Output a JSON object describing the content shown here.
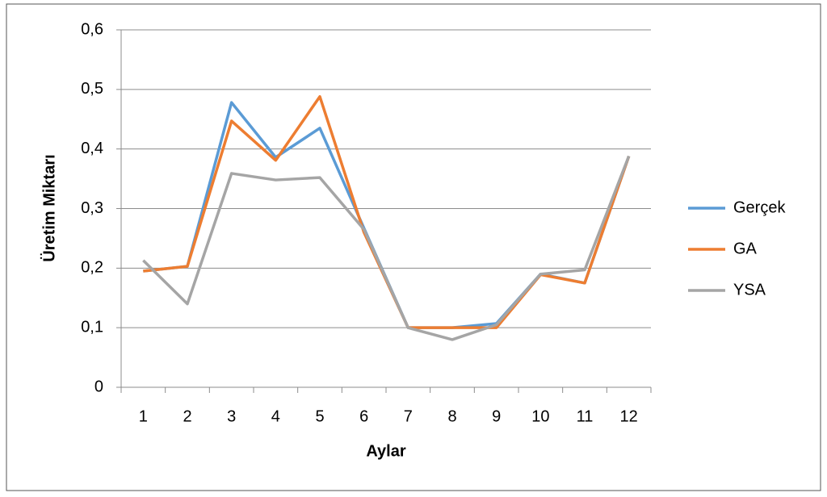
{
  "chart_data": {
    "type": "line",
    "x_label": "Aylar",
    "y_label": "Üretim Miktarı",
    "categories": [
      "1",
      "2",
      "3",
      "4",
      "5",
      "6",
      "7",
      "8",
      "9",
      "10",
      "11",
      "12"
    ],
    "series": [
      {
        "name": "Gerçek",
        "color": "#5b9bd5",
        "values": [
          0.195,
          0.203,
          0.478,
          0.386,
          0.435,
          0.267,
          0.1,
          0.1,
          0.107,
          0.19,
          0.175,
          0.388
        ]
      },
      {
        "name": "GA",
        "color": "#ed7d31",
        "values": [
          0.195,
          0.203,
          0.447,
          0.381,
          0.488,
          0.26,
          0.1,
          0.1,
          0.1,
          0.189,
          0.175,
          0.388
        ]
      },
      {
        "name": "YSA",
        "color": "#a5a5a5",
        "values": [
          0.213,
          0.14,
          0.359,
          0.348,
          0.352,
          0.265,
          0.1,
          0.08,
          0.105,
          0.19,
          0.197,
          0.388
        ]
      }
    ],
    "ylim": [
      0,
      0.6
    ],
    "yticks": [
      0,
      {
        "value": 0.1,
        "label": "0,1"
      },
      {
        "value": 0.2,
        "label": "0,2"
      },
      {
        "value": 0.3,
        "label": "0,3"
      },
      {
        "value": 0.4,
        "label": "0,4"
      },
      {
        "value": 0.5,
        "label": "0,5"
      },
      {
        "value": 0.6,
        "label": "0,6"
      }
    ],
    "grid": true,
    "legend": "right"
  }
}
